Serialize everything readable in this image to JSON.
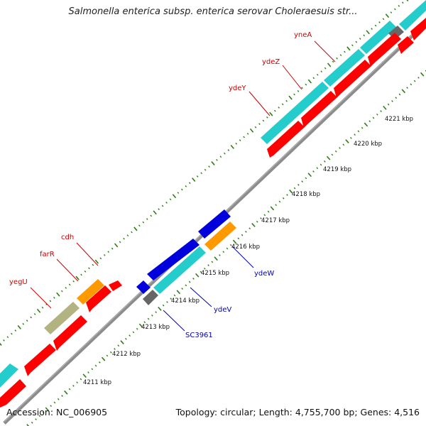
{
  "title": "Salmonella enterica subsp. enterica serovar Choleraesuis str...",
  "footer": {
    "accession": "Accession: NC_006905",
    "summary": "Topology: circular; Length: 4,755,700 bp; Genes: 4,516"
  },
  "colors": {
    "cyan": "#25cccc",
    "red": "#ff0000",
    "blue": "#0000dd",
    "orange": "#ff9900",
    "gray": "#666666",
    "olive": "#b3b382",
    "backbone": "#8c8c8c",
    "ticks": "#2e7d12",
    "red_label": "#cc0000",
    "blue_label": "#0000aa"
  },
  "ruler": {
    "labels": [
      "4211 kbp",
      "4212 kbp",
      "4213 kbp",
      "4214 kbp",
      "4215 kbp",
      "4216 kbp",
      "4217 kbp",
      "4218 kbp",
      "4219 kbp",
      "4220 kbp",
      "4221 kbp"
    ]
  },
  "gene_labels": [
    {
      "text": "yneA",
      "color": "red"
    },
    {
      "text": "ydeZ",
      "color": "red"
    },
    {
      "text": "ydeY",
      "color": "red"
    },
    {
      "text": "cdh",
      "color": "red"
    },
    {
      "text": "farR",
      "color": "red"
    },
    {
      "text": "yegU",
      "color": "red"
    },
    {
      "text": "ydeW",
      "color": "blue"
    },
    {
      "text": "ydeV",
      "color": "blue"
    },
    {
      "text": "SC3961",
      "color": "blue"
    }
  ]
}
